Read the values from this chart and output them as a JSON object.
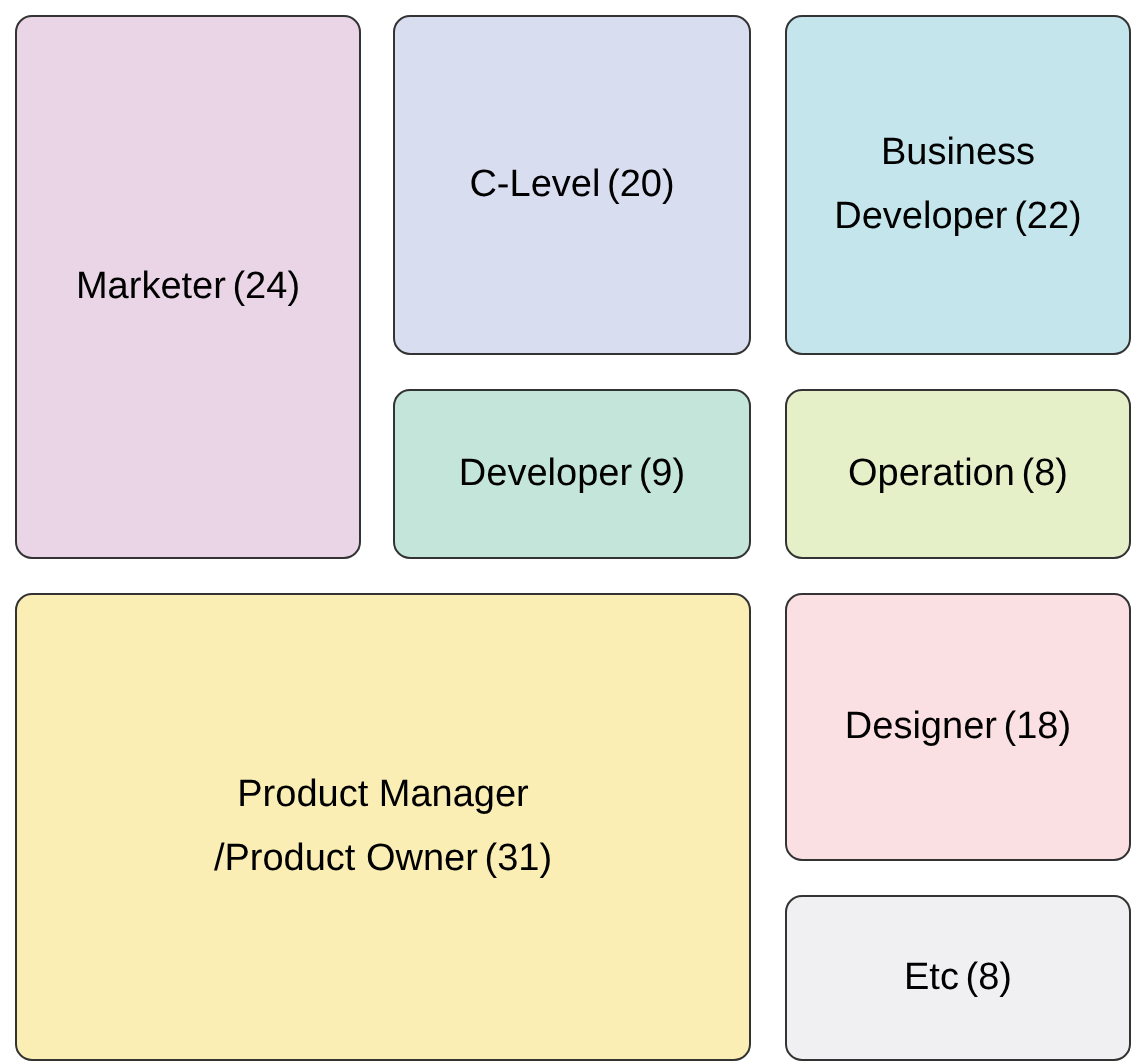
{
  "chart_data": {
    "type": "other",
    "categories": [
      "Marketer",
      "C-Level",
      "Business\nDeveloper",
      "Developer",
      "Operation",
      "Product Manager\n/Product Owner",
      "Designer",
      "Etc"
    ],
    "values": [
      24,
      20,
      22,
      9,
      8,
      31,
      18,
      8
    ],
    "value_labels": [
      "(24)",
      "(20)",
      "(22)",
      "(9)",
      "(8)",
      "(31)",
      "(18)",
      "(8)"
    ],
    "colors": [
      "#e9d5e6",
      "#d9ddf0",
      "#c4e5ec",
      "#c4e5da",
      "#e5f0c8",
      "#faeeb4",
      "#fbe0e3",
      "#f0f0f2"
    ]
  }
}
